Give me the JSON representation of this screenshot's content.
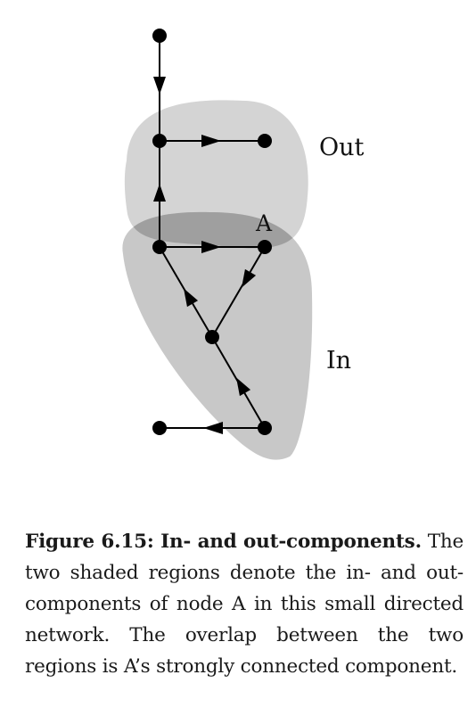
{
  "figure": {
    "labels": {
      "out": "Out",
      "in": "In",
      "node_a": "A"
    }
  },
  "caption": {
    "title": "Figure 6.15: In- and out-components.",
    "body": "The two shaded regions denote the in- and out-components of node A in this small directed network. The overlap between the two regions is A’s strongly connected component."
  },
  "colors": {
    "out_region": "#d4d4d4",
    "in_region": "#c8c8c8",
    "overlap": "#9f9f9f",
    "edges": "#000000"
  }
}
